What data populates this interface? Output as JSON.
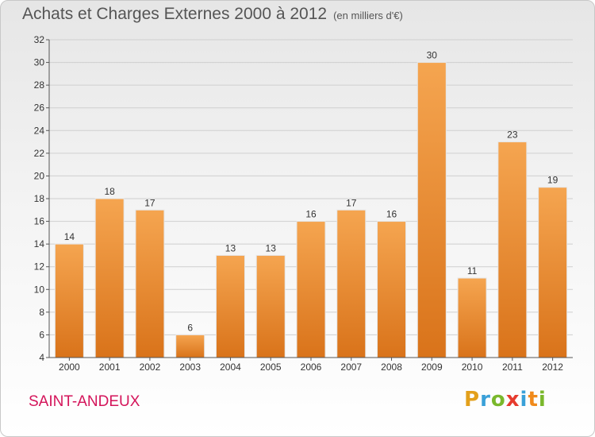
{
  "header": {
    "title": "Achats et Charges Externes 2000 à 2012",
    "subtitle": "(en milliers d'€)"
  },
  "footer": {
    "commune": "SAINT-ANDEUX",
    "logo_letters": [
      "P",
      "r",
      "o",
      "x",
      "i",
      "t",
      "i"
    ],
    "logo_colors": [
      "#e3a01b",
      "#3aa0d8",
      "#7ab82c",
      "#e63b2e",
      "#3aa0d8",
      "#f08a1c",
      "#7ab82c"
    ]
  },
  "colors": {
    "bar_top": "#f5a550",
    "bar_bottom": "#d9731a",
    "grid": "#cfcfcf",
    "text": "#333333"
  },
  "chart_data": {
    "type": "bar",
    "title": "Achats et Charges Externes 2000 à 2012",
    "categories": [
      "2000",
      "2001",
      "2002",
      "2003",
      "2004",
      "2005",
      "2006",
      "2007",
      "2008",
      "2009",
      "2010",
      "2011",
      "2012"
    ],
    "values": [
      14,
      18,
      17,
      6,
      13,
      13,
      16,
      17,
      16,
      30,
      11,
      23,
      19
    ],
    "ylim": [
      4,
      32
    ],
    "yticks": [
      4,
      6,
      8,
      10,
      12,
      14,
      16,
      18,
      20,
      22,
      24,
      26,
      28,
      30,
      32
    ],
    "grid": true,
    "xlabel": "",
    "ylabel": ""
  }
}
